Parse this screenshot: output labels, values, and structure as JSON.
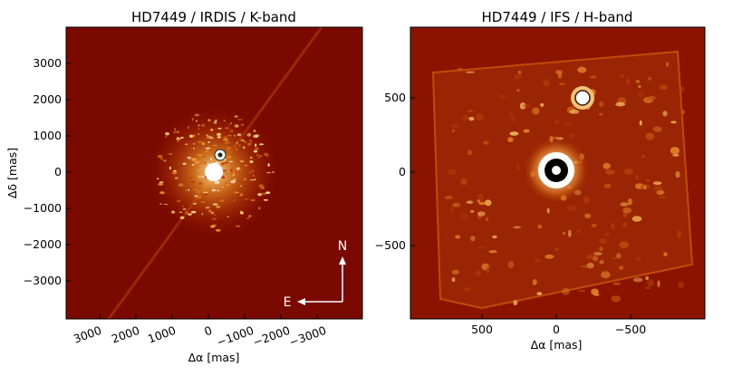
{
  "figure": {
    "panels": [
      {
        "title": "HD7449 / IRDIS / K-band",
        "xlabel": "Δα [mas]",
        "ylabel": "Δδ [mas]",
        "xticks": [
          "3000",
          "2000",
          "1000",
          "0",
          "−1000",
          "−2000",
          "−3000"
        ],
        "yticks": [
          "3000",
          "2000",
          "1000",
          "0",
          "−1000",
          "−2000",
          "−3000"
        ],
        "compass": {
          "north": "N",
          "east": "E"
        }
      },
      {
        "title": "HD7449 / IFS / H-band",
        "xlabel": "Δα [mas]",
        "xticks": [
          "500",
          "0",
          "−500"
        ],
        "yticks": [
          "500",
          "0",
          "−500"
        ]
      }
    ],
    "colors": {
      "background": "#7a0a00",
      "speckle_mid": "#c24a08",
      "speckle_bright": "#ffd27a",
      "saturated": "#ffffff"
    }
  }
}
